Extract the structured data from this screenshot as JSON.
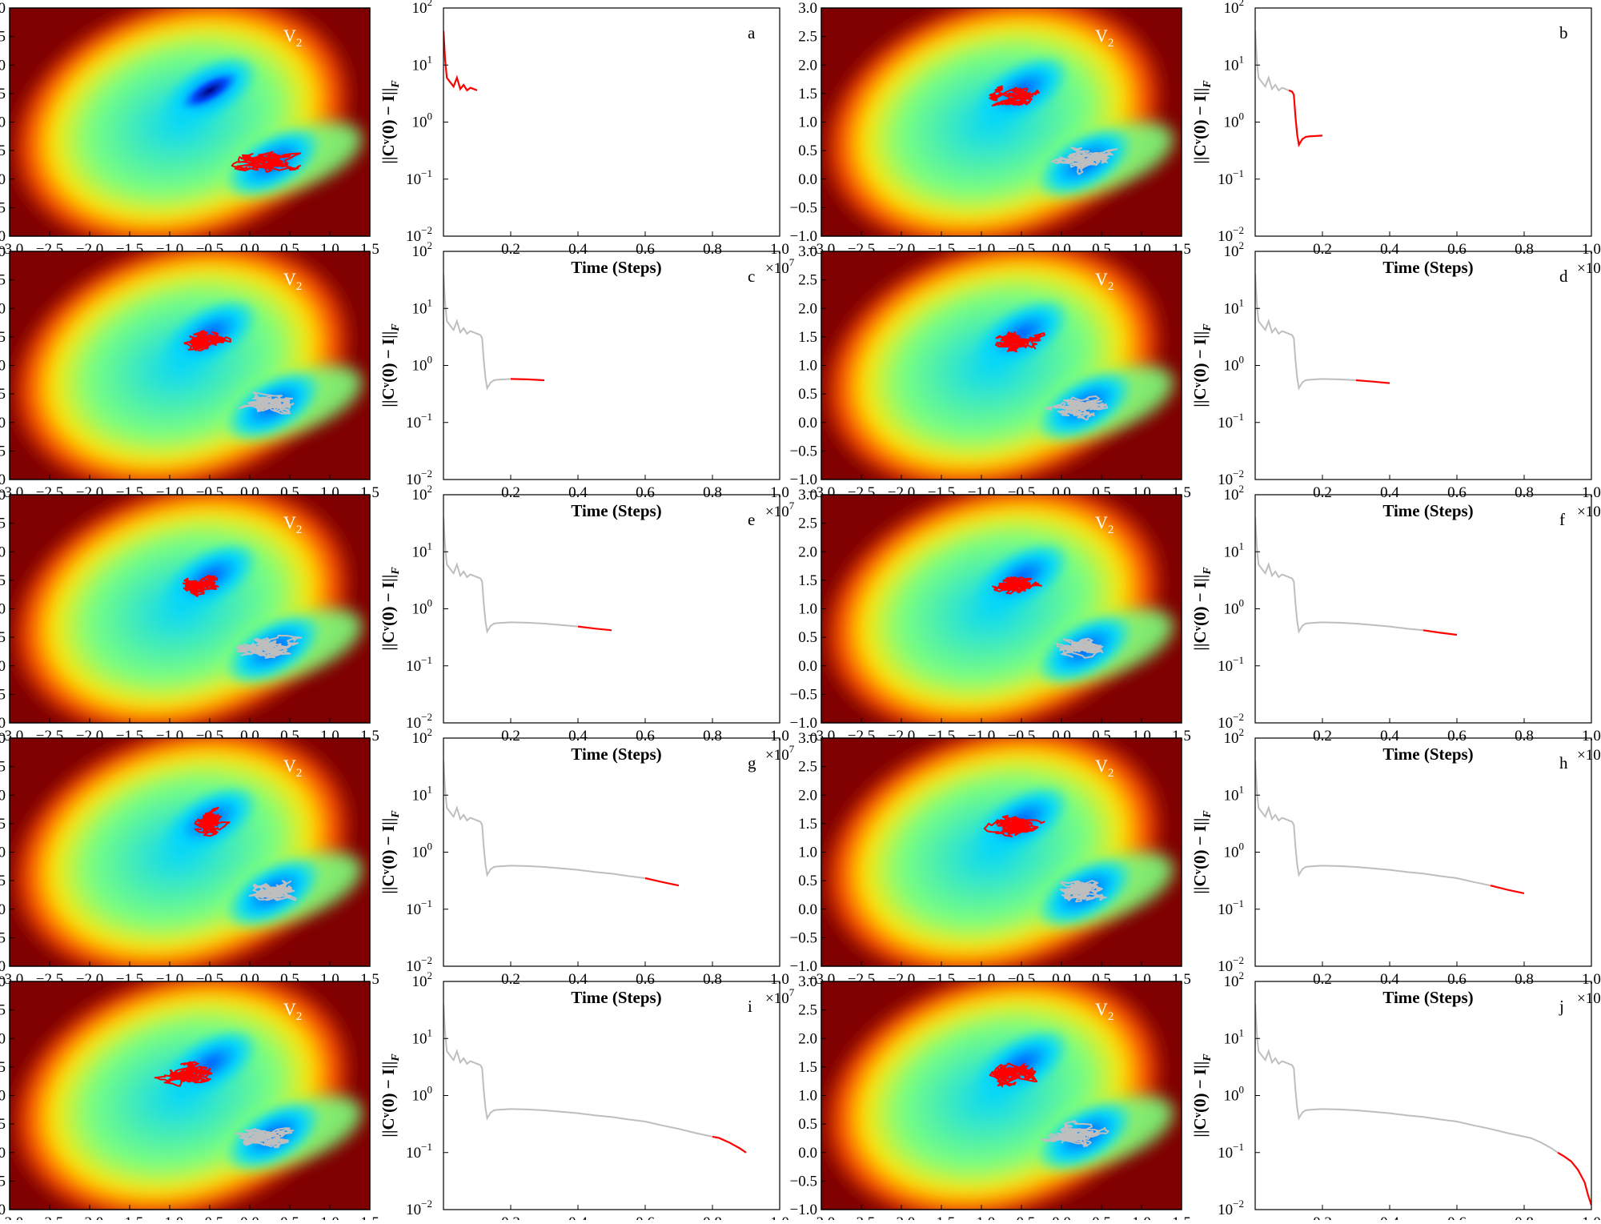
{
  "figure": {
    "row_order": [
      [
        "a",
        "b"
      ],
      [
        "c",
        "d"
      ],
      [
        "e",
        "f"
      ],
      [
        "g",
        "h"
      ],
      [
        "i",
        "j"
      ]
    ]
  },
  "chart_data": [
    {
      "type": "contour",
      "role": "landscape-template",
      "title": "",
      "annotation": "V",
      "annotation_subscript": "2",
      "xlim": [
        -3.0,
        1.5
      ],
      "ylim": [
        -1.0,
        3.0
      ],
      "x_ticks": [
        -3.0,
        -2.5,
        -2.0,
        -1.5,
        -1.0,
        -0.5,
        0.0,
        0.5,
        1.0,
        1.5
      ],
      "x_tick_labels": [
        "−3.0",
        "−2.5",
        "−2.0",
        "−1.5",
        "−1.0",
        "−0.5",
        "0.0",
        "0.5",
        "1.0",
        "1.5"
      ],
      "y_ticks": [
        -1.0,
        -0.5,
        0.0,
        0.5,
        1.0,
        1.5,
        2.0,
        2.5,
        3.0
      ],
      "y_tick_labels": [
        "−1.0",
        "−0.5",
        "0.0",
        "0.5",
        "1.0",
        "1.5",
        "2.0",
        "2.5",
        "3.0"
      ],
      "colormap": [
        "#00007f",
        "#0050ff",
        "#00d5ff",
        "#7dff7a",
        "#ffe600",
        "#ff4800",
        "#7f0000"
      ],
      "background_color": "#7f0000",
      "deep_basin_only_panel": "a",
      "basins": [
        {
          "name": "upper-basin",
          "center": [
            -0.5,
            1.55
          ],
          "visible_min_in_panel": "a"
        },
        {
          "name": "lower-basin",
          "center": [
            0.3,
            0.3
          ]
        }
      ],
      "trajectory_colors": {
        "current": "#ff0000",
        "history": "#bebebe"
      },
      "trajectory_regions": {
        "a": [
          {
            "center": [
              0.2,
              0.3
            ],
            "spread": [
              0.6,
              0.28
            ],
            "color": "current"
          }
        ],
        "b": [
          {
            "center": [
              0.25,
              0.35
            ],
            "spread": [
              0.55,
              0.32
            ],
            "color": "history"
          },
          {
            "center": [
              -0.55,
              1.45
            ],
            "spread": [
              0.45,
              0.3
            ],
            "color": "current"
          }
        ],
        "c": [
          {
            "center": [
              0.2,
              0.3
            ],
            "spread": [
              0.6,
              0.3
            ],
            "color": "history"
          },
          {
            "center": [
              -0.55,
              1.45
            ],
            "spread": [
              0.45,
              0.3
            ],
            "color": "current"
          }
        ],
        "d": [
          {
            "center": [
              0.2,
              0.3
            ],
            "spread": [
              0.6,
              0.3
            ],
            "color": "history"
          },
          {
            "center": [
              -0.55,
              1.45
            ],
            "spread": [
              0.45,
              0.3
            ],
            "color": "current"
          }
        ],
        "e": [
          {
            "center": [
              0.2,
              0.3
            ],
            "spread": [
              0.6,
              0.3
            ],
            "color": "history"
          },
          {
            "center": [
              -0.6,
              1.4
            ],
            "spread": [
              0.45,
              0.3
            ],
            "color": "current"
          }
        ],
        "f": [
          {
            "center": [
              0.2,
              0.3
            ],
            "spread": [
              0.6,
              0.3
            ],
            "color": "history"
          },
          {
            "center": [
              -0.55,
              1.45
            ],
            "spread": [
              0.45,
              0.3
            ],
            "color": "current"
          }
        ],
        "g": [
          {
            "center": [
              0.2,
              0.3
            ],
            "spread": [
              0.6,
              0.3
            ],
            "color": "history"
          },
          {
            "center": [
              -0.55,
              1.5
            ],
            "spread": [
              0.45,
              0.32
            ],
            "color": "current"
          }
        ],
        "h": [
          {
            "center": [
              0.2,
              0.3
            ],
            "spread": [
              0.6,
              0.3
            ],
            "color": "history"
          },
          {
            "center": [
              -0.55,
              1.45
            ],
            "spread": [
              0.45,
              0.3
            ],
            "color": "current"
          }
        ],
        "i": [
          {
            "center": [
              0.2,
              0.3
            ],
            "spread": [
              0.6,
              0.3
            ],
            "color": "history"
          },
          {
            "center": [
              -0.75,
              1.4
            ],
            "spread": [
              0.55,
              0.3
            ],
            "color": "current"
          }
        ],
        "j": [
          {
            "center": [
              0.2,
              0.3
            ],
            "spread": [
              0.6,
              0.3
            ],
            "color": "history"
          },
          {
            "center": [
              -0.6,
              1.35
            ],
            "spread": [
              0.5,
              0.35
            ],
            "color": "current"
          }
        ]
      }
    },
    {
      "type": "line",
      "role": "convergence-template",
      "y_scale": "log",
      "ylabel": "||Cᵛ(0) − I||",
      "ylabel_subscript": "F",
      "xlabel": "Time (Steps)",
      "x_multiplier": "×10",
      "x_multiplier_exp": "7",
      "xlim": [
        0.0,
        1.0
      ],
      "ylim": [
        0.01,
        100
      ],
      "x_ticks": [
        0.2,
        0.4,
        0.6,
        0.8,
        1.0
      ],
      "x_tick_labels": [
        "0.2",
        "0.4",
        "0.6",
        "0.8",
        "1.0"
      ],
      "y_ticks": [
        0.01,
        0.1,
        1,
        10,
        100
      ],
      "y_tick_labels": [
        [
          "10",
          "−2"
        ],
        [
          "10",
          "−1"
        ],
        [
          "10",
          "0"
        ],
        [
          "10",
          "1"
        ],
        [
          "10",
          "2"
        ]
      ],
      "full_curve": {
        "x": [
          0.0,
          0.005,
          0.01,
          0.02,
          0.03,
          0.04,
          0.05,
          0.06,
          0.07,
          0.08,
          0.09,
          0.1,
          0.105,
          0.11,
          0.115,
          0.12,
          0.125,
          0.13,
          0.14,
          0.15,
          0.16,
          0.18,
          0.2,
          0.25,
          0.3,
          0.35,
          0.4,
          0.45,
          0.5,
          0.55,
          0.6,
          0.65,
          0.7,
          0.75,
          0.8,
          0.82,
          0.85,
          0.88,
          0.9,
          0.92,
          0.94,
          0.96,
          0.98,
          0.99,
          1.0
        ],
        "y": [
          40,
          12,
          6,
          5,
          4.2,
          6.0,
          3.8,
          4.5,
          3.6,
          4.0,
          3.8,
          3.6,
          3.5,
          3.4,
          3.0,
          1.2,
          0.6,
          0.4,
          0.5,
          0.55,
          0.56,
          0.57,
          0.58,
          0.57,
          0.55,
          0.52,
          0.49,
          0.45,
          0.42,
          0.38,
          0.35,
          0.3,
          0.26,
          0.22,
          0.19,
          0.18,
          0.15,
          0.12,
          0.1,
          0.085,
          0.07,
          0.05,
          0.03,
          0.018,
          0.012
        ]
      },
      "panels": {
        "a": {
          "label": "a",
          "history_until": 0.0,
          "current_range": [
            0.0,
            0.1
          ]
        },
        "b": {
          "label": "b",
          "history_until": 0.1,
          "current_range": [
            0.1,
            0.2
          ]
        },
        "c": {
          "label": "c",
          "history_until": 0.2,
          "current_range": [
            0.2,
            0.3
          ]
        },
        "d": {
          "label": "d",
          "history_until": 0.3,
          "current_range": [
            0.3,
            0.4
          ]
        },
        "e": {
          "label": "e",
          "history_until": 0.4,
          "current_range": [
            0.4,
            0.5
          ]
        },
        "f": {
          "label": "f",
          "history_until": 0.5,
          "current_range": [
            0.5,
            0.6
          ]
        },
        "g": {
          "label": "g",
          "history_until": 0.6,
          "current_range": [
            0.6,
            0.7
          ]
        },
        "h": {
          "label": "h",
          "history_until": 0.7,
          "current_range": [
            0.7,
            0.8
          ]
        },
        "i": {
          "label": "i",
          "history_until": 0.8,
          "current_range": [
            0.8,
            0.9
          ]
        },
        "j": {
          "label": "j",
          "history_until": 0.9,
          "current_range": [
            0.9,
            1.0
          ]
        }
      }
    }
  ]
}
